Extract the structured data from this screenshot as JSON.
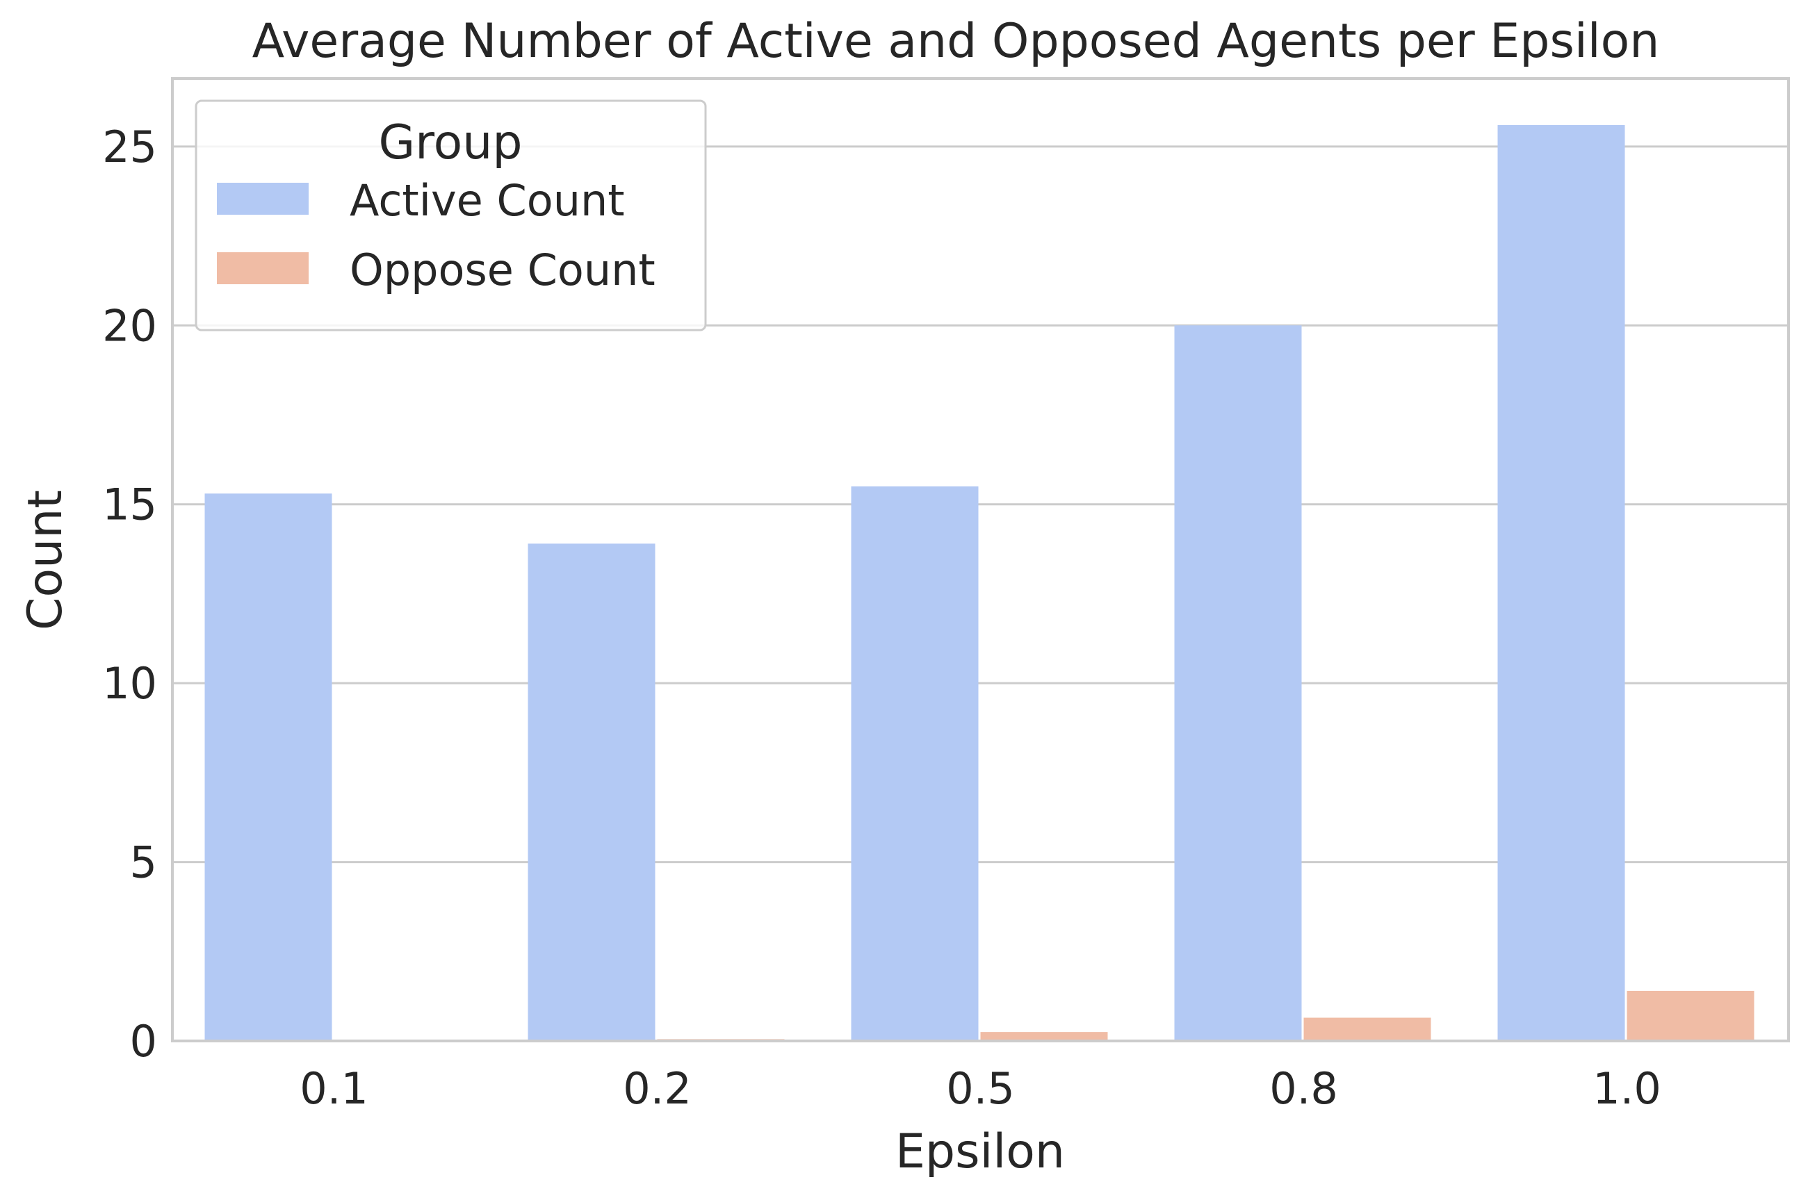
{
  "chart_data": {
    "type": "bar",
    "title": "Average Number of Active and Opposed Agents per Epsilon",
    "xlabel": "Epsilon",
    "ylabel": "Count",
    "categories": [
      "0.1",
      "0.2",
      "0.5",
      "0.8",
      "1.0"
    ],
    "series": [
      {
        "name": "Active Count",
        "color": "#b3c9f4",
        "values": [
          15.3,
          13.9,
          15.5,
          20.0,
          25.6
        ]
      },
      {
        "name": "Oppose Count",
        "color": "#f0bca5",
        "values": [
          0.0,
          0.05,
          0.25,
          0.65,
          1.4
        ]
      }
    ],
    "ylim": [
      0,
      26.9
    ],
    "yticks": [
      0,
      5,
      10,
      15,
      20,
      25
    ],
    "grid": true,
    "legend": {
      "title": "Group",
      "placement": "top-left"
    }
  }
}
